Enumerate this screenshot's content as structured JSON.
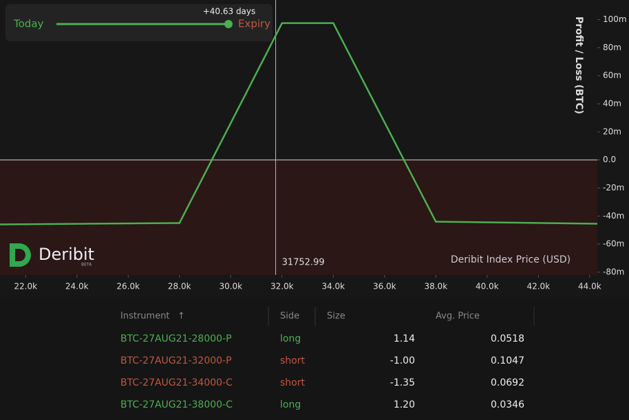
{
  "chart_data": {
    "type": "line",
    "x_label": "Deribit Index Price (USD)",
    "y_label": "Profit / Loss (BTC)",
    "x": [
      21000,
      28000,
      32000,
      34000,
      38000,
      44300
    ],
    "values": [
      -46,
      -45,
      97.5,
      97.5,
      -44,
      -45.5
    ],
    "color": "#4caf50",
    "xlim": [
      21000,
      44300
    ],
    "xticks": [
      {
        "value": 22000,
        "label": "22.0k"
      },
      {
        "value": 24000,
        "label": "24.0k"
      },
      {
        "value": 26000,
        "label": "26.0k"
      },
      {
        "value": 28000,
        "label": "28.0k"
      },
      {
        "value": 30000,
        "label": "30.0k"
      },
      {
        "value": 32000,
        "label": "32.0k"
      },
      {
        "value": 34000,
        "label": "34.0k"
      },
      {
        "value": 36000,
        "label": "36.0k"
      },
      {
        "value": 38000,
        "label": "38.0k"
      },
      {
        "value": 40000,
        "label": "40.0k"
      },
      {
        "value": 42000,
        "label": "42.0k"
      },
      {
        "value": 44000,
        "label": "44.0k"
      }
    ],
    "ylim": [
      -82,
      114
    ],
    "yticks": [
      {
        "value": 100,
        "label": "100m"
      },
      {
        "value": 80,
        "label": "80m"
      },
      {
        "value": 60,
        "label": "60m"
      },
      {
        "value": 40,
        "label": "40m"
      },
      {
        "value": 20,
        "label": "20m"
      },
      {
        "value": 0,
        "label": "0.0"
      },
      {
        "value": -20,
        "label": "-20m"
      },
      {
        "value": -40,
        "label": "-40m"
      },
      {
        "value": -60,
        "label": "-60m"
      },
      {
        "value": -80,
        "label": "-80m"
      }
    ],
    "crosshair": 31752.99
  },
  "time_slider": {
    "left": "Today",
    "right": "Expiry",
    "offset": "+40.63 days"
  },
  "logo": {
    "name": "Deribit",
    "badge": "BETA"
  },
  "table": {
    "columns": [
      "Instrument",
      "Side",
      "Size",
      "Avg. Price"
    ],
    "rows": [
      [
        "BTC-27AUG21-28000-P",
        "long",
        "1.14",
        "0.0518"
      ],
      [
        "BTC-27AUG21-32000-P",
        "short",
        "-1.00",
        "0.1047"
      ],
      [
        "BTC-27AUG21-34000-C",
        "short",
        "-1.35",
        "0.0692"
      ],
      [
        "BTC-27AUG21-38000-C",
        "long",
        "1.20",
        "0.0346"
      ]
    ],
    "row_colors": [
      "#4caf50",
      "#c0583f",
      "#c0583f",
      "#4caf50"
    ]
  }
}
